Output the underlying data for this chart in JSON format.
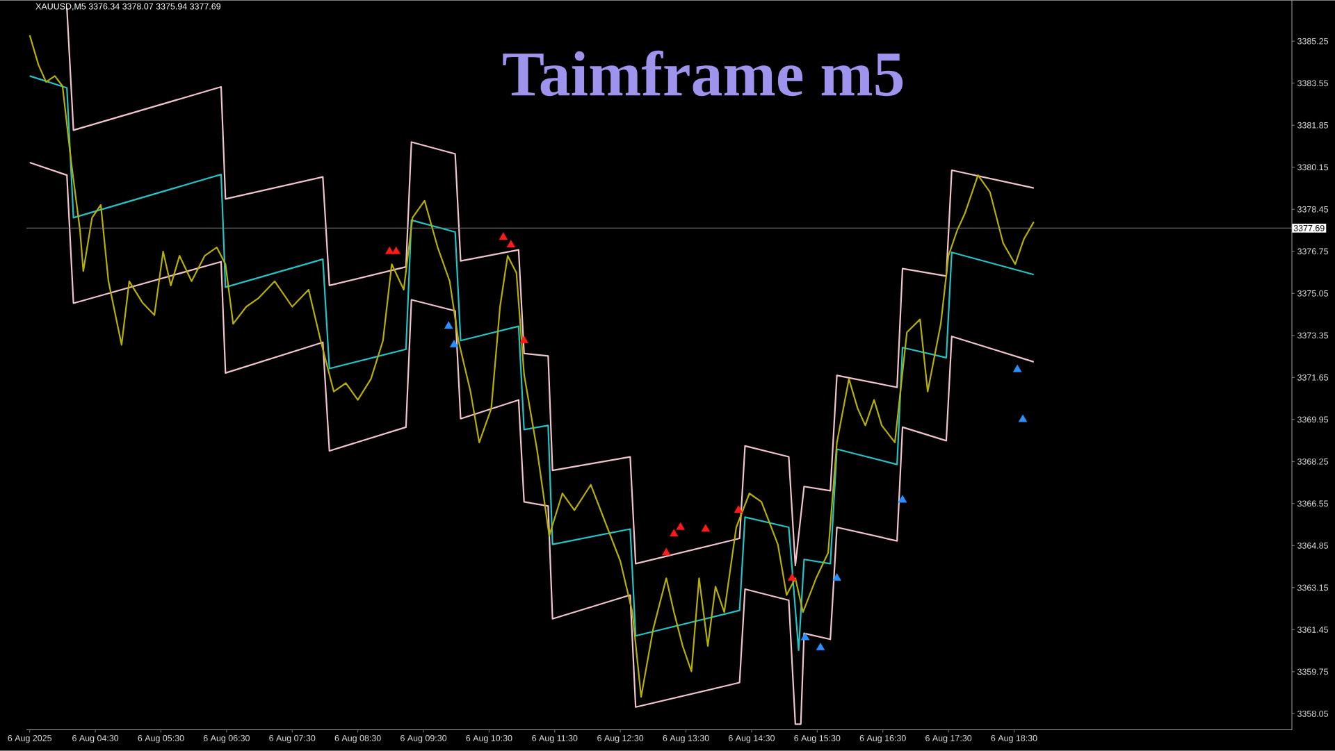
{
  "chart_data": {
    "type": "line",
    "title": "Taimframe m5",
    "annotations": [
      "XAUUSD,M5  3376.34 3378.07 3375.94 3377.69"
    ],
    "xlim": [
      "2025-08-06T03:27",
      "2025-08-06T22:44"
    ],
    "ylim": [
      3357.4,
      3386.9
    ],
    "xticks": [
      {
        "value": "2025-08-06T03:30",
        "label": "6 Aug 2025"
      },
      {
        "value": "2025-08-06T04:30",
        "label": "6 Aug 04:30"
      },
      {
        "value": "2025-08-06T05:30",
        "label": "6 Aug 05:30"
      },
      {
        "value": "2025-08-06T06:30",
        "label": "6 Aug 06:30"
      },
      {
        "value": "2025-08-06T07:30",
        "label": "6 Aug 07:30"
      },
      {
        "value": "2025-08-06T08:30",
        "label": "6 Aug 08:30"
      },
      {
        "value": "2025-08-06T09:30",
        "label": "6 Aug 09:30"
      },
      {
        "value": "2025-08-06T10:30",
        "label": "6 Aug 10:30"
      },
      {
        "value": "2025-08-06T11:30",
        "label": "6 Aug 11:30"
      },
      {
        "value": "2025-08-06T12:30",
        "label": "6 Aug 12:30"
      },
      {
        "value": "2025-08-06T13:30",
        "label": "6 Aug 13:30"
      },
      {
        "value": "2025-08-06T14:30",
        "label": "6 Aug 14:30"
      },
      {
        "value": "2025-08-06T15:30",
        "label": "6 Aug 15:30"
      },
      {
        "value": "2025-08-06T16:30",
        "label": "6 Aug 16:30"
      },
      {
        "value": "2025-08-06T17:30",
        "label": "6 Aug 17:30"
      },
      {
        "value": "2025-08-06T18:30",
        "label": "6 Aug 18:30"
      }
    ],
    "yticks": [
      3358.05,
      3359.75,
      3361.45,
      3363.15,
      3364.85,
      3366.55,
      3368.25,
      3369.95,
      3371.65,
      3373.35,
      3375.05,
      3376.75,
      3378.45,
      3380.15,
      3381.85,
      3383.55,
      3385.25
    ],
    "ref_lines": [
      {
        "axis": "y",
        "value": 3377.69,
        "label": "3377.69",
        "color": "#808080"
      }
    ],
    "series": [
      {
        "color": "#f2c4cc",
        "x": [
          "2025-08-06T04:04",
          "2025-08-06T04:10",
          "2025-08-06T06:25",
          "2025-08-06T06:29",
          "2025-08-06T07:58",
          "2025-08-06T08:04",
          "2025-08-06T09:14",
          "2025-08-06T09:19",
          "2025-08-06T09:59",
          "2025-08-06T10:04",
          "2025-08-06T10:57",
          "2025-08-06T11:02",
          "2025-08-06T11:24",
          "2025-08-06T11:28",
          "2025-08-06T12:39",
          "2025-08-06T12:44",
          "2025-08-06T14:19",
          "2025-08-06T14:24",
          "2025-08-06T15:04",
          "2025-08-06T15:10",
          "2025-08-06T15:18",
          "2025-08-06T15:42",
          "2025-08-06T15:48",
          "2025-08-06T16:43",
          "2025-08-06T16:48",
          "2025-08-06T17:28",
          "2025-08-06T17:33",
          "2025-08-06T18:48"
        ],
        "values": [
          3386.59,
          3381.65,
          3383.4,
          3378.87,
          3379.76,
          3375.37,
          3376.12,
          3381.17,
          3380.69,
          3376.36,
          3376.81,
          3372.62,
          3372.52,
          3367.89,
          3368.44,
          3364.12,
          3365.14,
          3368.88,
          3368.44,
          3364.05,
          3367.24,
          3367.07,
          3371.73,
          3371.25,
          3376.05,
          3375.75,
          3380.03,
          3379.31
        ]
      },
      {
        "color": "#f2c4cc",
        "x": [
          "2025-08-06T03:30",
          "2025-08-06T04:04",
          "2025-08-06T04:10",
          "2025-08-06T06:25",
          "2025-08-06T06:29",
          "2025-08-06T07:58",
          "2025-08-06T08:04",
          "2025-08-06T09:14",
          "2025-08-06T09:19",
          "2025-08-06T09:59",
          "2025-08-06T10:04",
          "2025-08-06T10:57",
          "2025-08-06T11:02",
          "2025-08-06T11:24",
          "2025-08-06T11:28",
          "2025-08-06T12:39",
          "2025-08-06T12:44",
          "2025-08-06T14:19",
          "2025-08-06T14:24",
          "2025-08-06T15:04",
          "2025-08-06T15:10",
          "2025-08-06T15:15",
          "2025-08-06T15:18",
          "2025-08-06T15:42",
          "2025-08-06T15:48",
          "2025-08-06T16:43",
          "2025-08-06T16:48",
          "2025-08-06T17:28",
          "2025-08-06T17:33",
          "2025-08-06T18:48"
        ],
        "values": [
          3380.34,
          3379.83,
          3374.65,
          3376.33,
          3371.83,
          3373.07,
          3368.68,
          3369.64,
          3374.79,
          3374.34,
          3369.98,
          3370.74,
          3366.62,
          3366.45,
          3361.89,
          3362.85,
          3358.32,
          3359.31,
          3363.09,
          3362.64,
          3357.63,
          3357.63,
          3361.3,
          3361.06,
          3365.59,
          3365.04,
          3369.64,
          3369.09,
          3373.31,
          3372.28
        ]
      },
      {
        "color": "#22c4c8",
        "x": [
          "2025-08-06T03:30",
          "2025-08-06T04:04",
          "2025-08-06T04:10",
          "2025-08-06T06:25",
          "2025-08-06T06:29",
          "2025-08-06T07:58",
          "2025-08-06T08:04",
          "2025-08-06T09:14",
          "2025-08-06T09:19",
          "2025-08-06T09:59",
          "2025-08-06T10:04",
          "2025-08-06T10:57",
          "2025-08-06T11:02",
          "2025-08-06T11:24",
          "2025-08-06T11:28",
          "2025-08-06T12:39",
          "2025-08-06T12:44",
          "2025-08-06T14:19",
          "2025-08-06T14:24",
          "2025-08-06T15:04",
          "2025-08-06T15:13",
          "2025-08-06T15:18",
          "2025-08-06T15:42",
          "2025-08-06T15:48",
          "2025-08-06T16:43",
          "2025-08-06T16:48",
          "2025-08-06T17:28",
          "2025-08-06T17:33",
          "2025-08-06T18:48"
        ],
        "values": [
          3383.84,
          3383.36,
          3378.11,
          3379.86,
          3375.3,
          3376.43,
          3372.01,
          3372.79,
          3378.01,
          3377.53,
          3373.14,
          3373.72,
          3369.54,
          3369.71,
          3364.9,
          3365.52,
          3361.2,
          3362.23,
          3366.0,
          3365.59,
          3360.62,
          3364.29,
          3364.12,
          3368.75,
          3368.13,
          3372.86,
          3372.45,
          3376.71,
          3375.81
        ]
      },
      {
        "color": "#b8b000",
        "x": [
          "2025-08-06T03:30",
          "2025-08-06T03:38",
          "2025-08-06T03:45",
          "2025-08-06T03:53",
          "2025-08-06T04:00",
          "2025-08-06T04:08",
          "2025-08-06T04:16",
          "2025-08-06T04:19",
          "2025-08-06T04:27",
          "2025-08-06T04:35",
          "2025-08-06T04:42",
          "2025-08-06T04:54",
          "2025-08-06T05:01",
          "2025-08-06T05:13",
          "2025-08-06T05:24",
          "2025-08-06T05:32",
          "2025-08-06T05:39",
          "2025-08-06T05:47",
          "2025-08-06T05:58",
          "2025-08-06T06:10",
          "2025-08-06T06:21",
          "2025-08-06T06:29",
          "2025-08-06T06:36",
          "2025-08-06T06:48",
          "2025-08-06T06:59",
          "2025-08-06T07:14",
          "2025-08-06T07:30",
          "2025-08-06T07:45",
          "2025-08-06T07:56",
          "2025-08-06T08:08",
          "2025-08-06T08:19",
          "2025-08-06T08:30",
          "2025-08-06T08:42",
          "2025-08-06T08:53",
          "2025-08-06T09:01",
          "2025-08-06T09:12",
          "2025-08-06T09:20",
          "2025-08-06T09:31",
          "2025-08-06T09:43",
          "2025-08-06T09:54",
          "2025-08-06T10:02",
          "2025-08-06T10:13",
          "2025-08-06T10:21",
          "2025-08-06T10:32",
          "2025-08-06T10:40",
          "2025-08-06T10:47",
          "2025-08-06T10:55",
          "2025-08-06T11:02",
          "2025-08-06T11:14",
          "2025-08-06T11:25",
          "2025-08-06T11:37",
          "2025-08-06T11:48",
          "2025-08-06T12:03",
          "2025-08-06T12:18",
          "2025-08-06T12:30",
          "2025-08-06T12:41",
          "2025-08-06T12:49",
          "2025-08-06T13:00",
          "2025-08-06T13:12",
          "2025-08-06T13:19",
          "2025-08-06T13:27",
          "2025-08-06T13:35",
          "2025-08-06T13:42",
          "2025-08-06T13:50",
          "2025-08-06T13:57",
          "2025-08-06T14:05",
          "2025-08-06T14:16",
          "2025-08-06T14:28",
          "2025-08-06T14:39",
          "2025-08-06T14:54",
          "2025-08-06T15:02",
          "2025-08-06T15:10",
          "2025-08-06T15:17",
          "2025-08-06T15:29",
          "2025-08-06T15:40",
          "2025-08-06T15:48",
          "2025-08-06T15:59",
          "2025-08-06T16:07",
          "2025-08-06T16:14",
          "2025-08-06T16:22",
          "2025-08-06T16:29",
          "2025-08-06T16:41",
          "2025-08-06T16:52",
          "2025-08-06T17:04",
          "2025-08-06T17:11",
          "2025-08-06T17:23",
          "2025-08-06T17:30",
          "2025-08-06T17:38",
          "2025-08-06T17:45",
          "2025-08-06T17:57",
          "2025-08-06T18:08",
          "2025-08-06T18:20",
          "2025-08-06T18:31",
          "2025-08-06T18:39",
          "2025-08-06T18:48"
        ],
        "values": [
          3385.49,
          3384.29,
          3383.6,
          3383.84,
          3383.43,
          3380.34,
          3377.6,
          3375.95,
          3378.11,
          3378.63,
          3375.54,
          3372.97,
          3375.54,
          3374.68,
          3374.17,
          3376.74,
          3375.37,
          3376.57,
          3375.54,
          3376.57,
          3376.91,
          3376.23,
          3373.82,
          3374.51,
          3374.85,
          3375.54,
          3374.51,
          3375.2,
          3373.14,
          3371.08,
          3371.42,
          3370.74,
          3371.59,
          3373.14,
          3376.23,
          3375.2,
          3378.11,
          3378.8,
          3376.91,
          3375.54,
          3373.14,
          3371.08,
          3369.02,
          3370.39,
          3374.51,
          3376.57,
          3375.88,
          3371.77,
          3368.68,
          3365.25,
          3366.96,
          3366.28,
          3367.31,
          3365.59,
          3364.22,
          3362.16,
          3358.73,
          3361.47,
          3363.53,
          3362.16,
          3360.79,
          3359.76,
          3363.53,
          3360.79,
          3363.19,
          3362.16,
          3365.59,
          3366.96,
          3366.62,
          3364.9,
          3362.85,
          3363.53,
          3362.16,
          3363.53,
          3364.56,
          3369.02,
          3371.59,
          3370.39,
          3369.71,
          3370.74,
          3369.71,
          3369.02,
          3373.48,
          3374.0,
          3371.08,
          3373.82,
          3376.57,
          3377.6,
          3378.28,
          3379.83,
          3379.14,
          3377.08,
          3376.23,
          3377.25,
          3377.94
        ]
      },
      {
        "type": "scatter",
        "color": "#ff1a1a",
        "marker": "triangle",
        "x": [
          "2025-08-06T08:59",
          "2025-08-06T09:05",
          "2025-08-06T10:43",
          "2025-08-06T10:50",
          "2025-08-06T11:02",
          "2025-08-06T13:12",
          "2025-08-06T13:19",
          "2025-08-06T13:25",
          "2025-08-06T13:48",
          "2025-08-06T14:18",
          "2025-08-06T15:07"
        ],
        "values": [
          3376.74,
          3376.74,
          3377.32,
          3377.01,
          3373.14,
          3364.56,
          3365.32,
          3365.59,
          3365.52,
          3366.28,
          3363.53
        ]
      },
      {
        "type": "scatter",
        "color": "#2b8fff",
        "marker": "triangle",
        "x": [
          "2025-08-06T09:53",
          "2025-08-06T09:58",
          "2025-08-06T15:19",
          "2025-08-06T15:33",
          "2025-08-06T15:48",
          "2025-08-06T16:48",
          "2025-08-06T18:33",
          "2025-08-06T18:38"
        ],
        "values": [
          3373.72,
          3372.97,
          3361.13,
          3360.72,
          3363.53,
          3366.69,
          3371.97,
          3369.95
        ]
      }
    ]
  }
}
